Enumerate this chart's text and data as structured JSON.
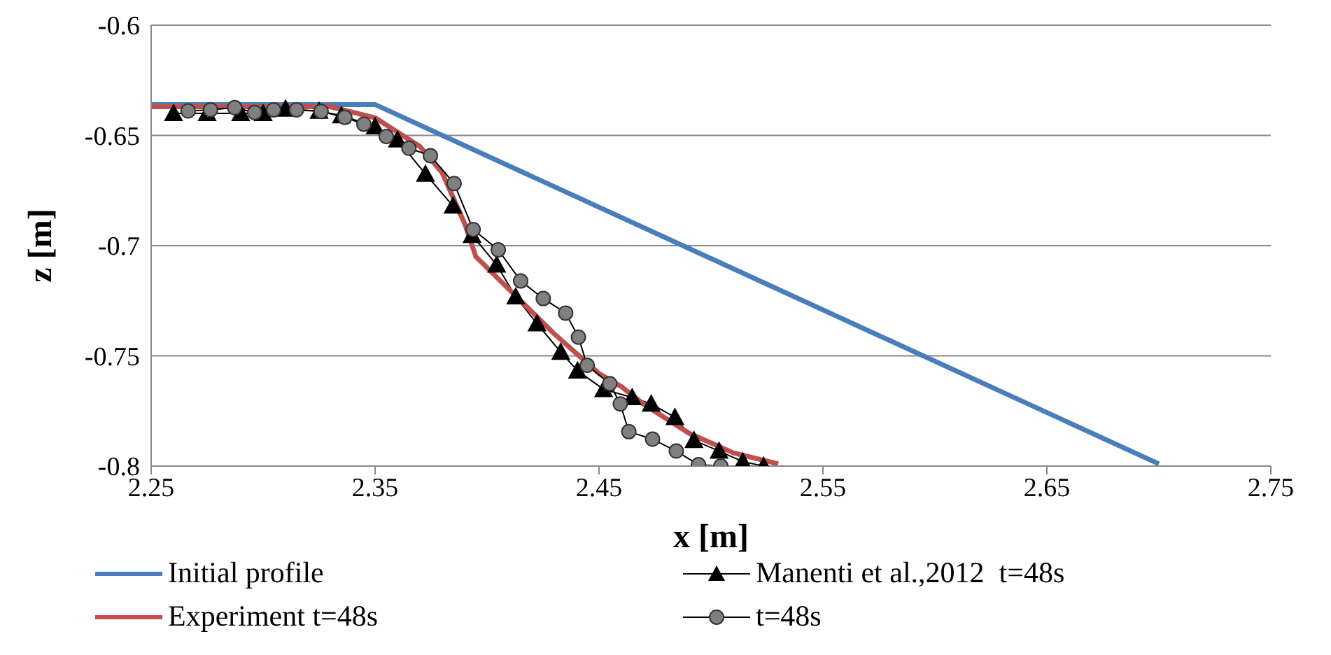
{
  "chart_data": {
    "type": "line",
    "xlabel": "x [m]",
    "ylabel": "z [m]",
    "xlim": [
      2.25,
      2.75
    ],
    "xticks": [
      2.25,
      2.35,
      2.45,
      2.55,
      2.65,
      2.75
    ],
    "ylim": [
      -0.8,
      -0.6
    ],
    "yticks": [
      -0.8,
      -0.75,
      -0.7,
      -0.65,
      -0.6
    ],
    "grid": "y",
    "legend": "bottom",
    "series": [
      {
        "name": "Initial profile",
        "color": "#4a7ebb",
        "marker": "none",
        "x": [
          2.25,
          2.35,
          2.7
        ],
        "values": [
          -0.636,
          -0.636,
          -0.799
        ]
      },
      {
        "name": "Manenti et al.,2012  t=48s",
        "color": "#000000",
        "marker": "triangle",
        "x": [
          2.26,
          2.275,
          2.29,
          2.3,
          2.31,
          2.325,
          2.335,
          2.35,
          2.36,
          2.3725,
          2.3848,
          2.3933,
          2.4043,
          2.4128,
          2.4223,
          2.4329,
          2.4404,
          2.4521,
          2.4648,
          2.4733,
          2.4839,
          2.4924,
          2.5036,
          2.5142,
          2.5235
        ],
        "values": [
          -0.64,
          -0.64,
          -0.64,
          -0.64,
          -0.638,
          -0.639,
          -0.641,
          -0.646,
          -0.652,
          -0.6675,
          -0.682,
          -0.6953,
          -0.7087,
          -0.7232,
          -0.7354,
          -0.7483,
          -0.7568,
          -0.7652,
          -0.7689,
          -0.7718,
          -0.7779,
          -0.7883,
          -0.7932,
          -0.798,
          -0.8
        ]
      },
      {
        "name": "Experiment t=48s",
        "color": "#c0504d",
        "marker": "none",
        "x": [
          2.25,
          2.33,
          2.35,
          2.37,
          2.38,
          2.39,
          2.395,
          2.41,
          2.43,
          2.45,
          2.46,
          2.47,
          2.49,
          2.51,
          2.53
        ],
        "values": [
          -0.637,
          -0.637,
          -0.642,
          -0.655,
          -0.667,
          -0.69,
          -0.705,
          -0.72,
          -0.74,
          -0.758,
          -0.764,
          -0.772,
          -0.785,
          -0.794,
          -0.799
        ]
      },
      {
        "name": "t=48s",
        "color": "#808080",
        "marker": "circle",
        "x": [
          2.2665,
          2.2765,
          2.2873,
          2.2962,
          2.3047,
          2.3149,
          2.3259,
          2.3365,
          2.345,
          2.355,
          2.3651,
          2.3747,
          2.3853,
          2.3938,
          2.405,
          2.415,
          2.4251,
          2.4351,
          2.4408,
          2.4447,
          2.4548,
          2.4595,
          2.4633,
          2.4739,
          2.4845,
          2.4944,
          2.5044
        ],
        "values": [
          -0.6389,
          -0.6384,
          -0.6374,
          -0.6396,
          -0.6384,
          -0.6384,
          -0.6391,
          -0.6418,
          -0.6449,
          -0.6505,
          -0.6558,
          -0.6592,
          -0.6718,
          -0.6927,
          -0.7019,
          -0.716,
          -0.724,
          -0.7306,
          -0.7415,
          -0.7543,
          -0.7626,
          -0.7718,
          -0.7844,
          -0.7878,
          -0.7932,
          -0.7994,
          -0.8
        ]
      }
    ]
  }
}
